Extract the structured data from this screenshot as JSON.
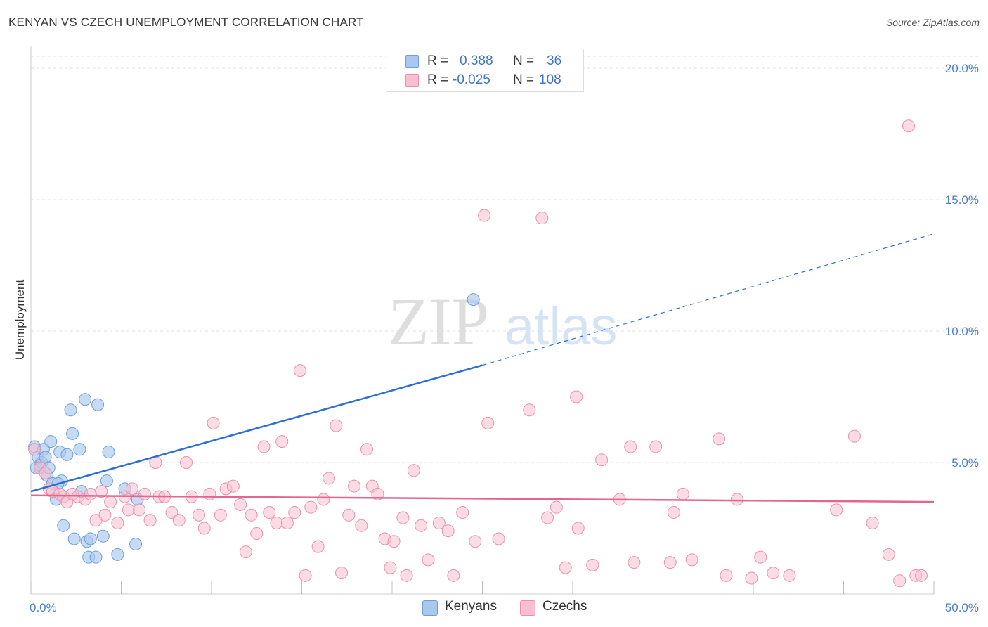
{
  "header": {
    "title": "KENYAN VS CZECH UNEMPLOYMENT CORRELATION CHART",
    "source": "Source: ZipAtlas.com"
  },
  "legend": {
    "rows": [
      {
        "r_label": "R =",
        "r_value": "0.388",
        "n_label": "N =",
        "n_value": "36"
      },
      {
        "r_label": "R =",
        "r_value": "-0.025",
        "n_label": "N =",
        "n_value": "108"
      }
    ]
  },
  "bottom_legend": {
    "kenyans": "Kenyans",
    "czechs": "Czechs"
  },
  "watermark": {
    "zip": "ZIP",
    "atlas": "atlas"
  },
  "colors": {
    "kenyans_fill": "#aac8ee",
    "kenyans_stroke": "#6c9fdd",
    "kenyans_line": "#2e6fd1",
    "czechs_fill": "#f8bfd0",
    "czechs_stroke": "#ec8fac",
    "czechs_line": "#e2668f",
    "tick_label": "#4a7fd0",
    "grid": "#e2e2e2"
  },
  "chart_data": {
    "type": "scatter",
    "title": "KENYAN VS CZECH UNEMPLOYMENT CORRELATION CHART",
    "xlabel": "",
    "ylabel": "Unemployment",
    "xlim": [
      0,
      50
    ],
    "ylim": [
      0,
      20
    ],
    "x_tick_labels": [
      "0.0%",
      "50.0%"
    ],
    "y_ticks": [
      5,
      10,
      15,
      20
    ],
    "y_tick_labels": [
      "5.0%",
      "10.0%",
      "15.0%",
      "20.0%"
    ],
    "grid": true,
    "series": [
      {
        "name": "Kenyans",
        "r": 0.388,
        "n": 36,
        "trend": {
          "x0": 0,
          "y0": 3.9,
          "x1": 25,
          "y1": 8.7,
          "dashed_to_x": 50,
          "dashed_to_y": 13.7
        },
        "points": [
          [
            0.2,
            5.6
          ],
          [
            0.3,
            4.8
          ],
          [
            0.4,
            5.2
          ],
          [
            0.5,
            4.9
          ],
          [
            0.6,
            5.0
          ],
          [
            0.7,
            5.5
          ],
          [
            0.8,
            5.2
          ],
          [
            0.9,
            4.5
          ],
          [
            1.0,
            4.8
          ],
          [
            1.1,
            5.8
          ],
          [
            1.2,
            4.2
          ],
          [
            1.4,
            3.6
          ],
          [
            1.6,
            5.4
          ],
          [
            1.7,
            4.3
          ],
          [
            1.8,
            2.6
          ],
          [
            2.0,
            5.3
          ],
          [
            2.2,
            7.0
          ],
          [
            2.3,
            6.1
          ],
          [
            2.4,
            2.1
          ],
          [
            2.7,
            5.5
          ],
          [
            2.8,
            3.9
          ],
          [
            3.0,
            7.4
          ],
          [
            3.1,
            2.0
          ],
          [
            3.2,
            1.4
          ],
          [
            3.3,
            2.1
          ],
          [
            3.6,
            1.4
          ],
          [
            3.7,
            7.2
          ],
          [
            4.0,
            2.2
          ],
          [
            4.2,
            4.3
          ],
          [
            4.3,
            5.4
          ],
          [
            4.8,
            1.5
          ],
          [
            5.2,
            4.0
          ],
          [
            5.8,
            1.9
          ],
          [
            5.9,
            3.6
          ],
          [
            1.5,
            4.2
          ],
          [
            24.5,
            11.2
          ]
        ]
      },
      {
        "name": "Czechs",
        "r": -0.025,
        "n": 108,
        "trend": {
          "x0": 0,
          "y0": 3.75,
          "x1": 50,
          "y1": 3.5
        },
        "points": [
          [
            0.2,
            5.5
          ],
          [
            0.5,
            4.8
          ],
          [
            0.8,
            4.6
          ],
          [
            1.0,
            4.0
          ],
          [
            1.2,
            3.9
          ],
          [
            1.6,
            3.8
          ],
          [
            1.8,
            3.7
          ],
          [
            2.0,
            3.5
          ],
          [
            2.3,
            3.8
          ],
          [
            2.6,
            3.7
          ],
          [
            3.0,
            3.6
          ],
          [
            3.3,
            3.8
          ],
          [
            3.6,
            2.8
          ],
          [
            3.9,
            3.9
          ],
          [
            4.1,
            3.0
          ],
          [
            4.4,
            3.5
          ],
          [
            4.8,
            2.7
          ],
          [
            5.2,
            3.7
          ],
          [
            5.4,
            3.2
          ],
          [
            5.6,
            4.0
          ],
          [
            6.0,
            3.2
          ],
          [
            6.3,
            3.8
          ],
          [
            6.6,
            2.8
          ],
          [
            6.9,
            5.0
          ],
          [
            7.1,
            3.7
          ],
          [
            7.4,
            3.7
          ],
          [
            7.8,
            3.1
          ],
          [
            8.2,
            2.8
          ],
          [
            8.6,
            5.0
          ],
          [
            8.9,
            3.7
          ],
          [
            9.3,
            3.0
          ],
          [
            9.6,
            2.5
          ],
          [
            9.9,
            3.8
          ],
          [
            10.1,
            6.5
          ],
          [
            10.5,
            3.0
          ],
          [
            10.8,
            4.0
          ],
          [
            11.2,
            4.1
          ],
          [
            11.6,
            3.4
          ],
          [
            11.9,
            1.6
          ],
          [
            12.2,
            3.0
          ],
          [
            12.5,
            2.3
          ],
          [
            12.9,
            5.6
          ],
          [
            13.2,
            3.1
          ],
          [
            13.6,
            2.7
          ],
          [
            13.9,
            5.8
          ],
          [
            14.2,
            2.7
          ],
          [
            14.6,
            3.1
          ],
          [
            14.9,
            8.5
          ],
          [
            15.2,
            0.7
          ],
          [
            15.5,
            3.3
          ],
          [
            15.9,
            1.8
          ],
          [
            16.2,
            3.6
          ],
          [
            16.5,
            4.4
          ],
          [
            16.9,
            6.4
          ],
          [
            17.2,
            0.8
          ],
          [
            17.6,
            3.0
          ],
          [
            17.9,
            4.1
          ],
          [
            18.3,
            2.6
          ],
          [
            18.6,
            5.5
          ],
          [
            18.9,
            4.1
          ],
          [
            19.2,
            3.8
          ],
          [
            19.6,
            2.1
          ],
          [
            19.9,
            1.0
          ],
          [
            20.1,
            2.0
          ],
          [
            20.6,
            2.9
          ],
          [
            20.8,
            0.7
          ],
          [
            21.2,
            4.7
          ],
          [
            21.6,
            2.6
          ],
          [
            22.0,
            1.3
          ],
          [
            22.6,
            2.7
          ],
          [
            23.1,
            2.4
          ],
          [
            23.4,
            0.7
          ],
          [
            23.9,
            3.1
          ],
          [
            24.6,
            2.0
          ],
          [
            25.1,
            14.4
          ],
          [
            25.3,
            6.5
          ],
          [
            25.9,
            2.1
          ],
          [
            27.6,
            7.0
          ],
          [
            28.3,
            14.3
          ],
          [
            28.6,
            2.9
          ],
          [
            29.1,
            3.3
          ],
          [
            29.6,
            1.0
          ],
          [
            30.2,
            7.5
          ],
          [
            30.3,
            2.5
          ],
          [
            31.1,
            1.1
          ],
          [
            31.6,
            5.1
          ],
          [
            32.6,
            3.6
          ],
          [
            33.2,
            5.6
          ],
          [
            33.4,
            1.2
          ],
          [
            34.6,
            5.6
          ],
          [
            35.4,
            1.2
          ],
          [
            35.6,
            3.1
          ],
          [
            36.1,
            3.8
          ],
          [
            36.6,
            1.3
          ],
          [
            38.1,
            5.9
          ],
          [
            38.5,
            0.7
          ],
          [
            39.1,
            3.6
          ],
          [
            39.9,
            0.6
          ],
          [
            40.4,
            1.4
          ],
          [
            41.1,
            0.8
          ],
          [
            42.0,
            0.7
          ],
          [
            44.6,
            3.2
          ],
          [
            45.6,
            6.0
          ],
          [
            46.6,
            2.7
          ],
          [
            47.5,
            1.5
          ],
          [
            48.1,
            0.5
          ],
          [
            48.6,
            17.8
          ],
          [
            49.0,
            0.7
          ],
          [
            49.3,
            0.7
          ]
        ]
      }
    ]
  }
}
